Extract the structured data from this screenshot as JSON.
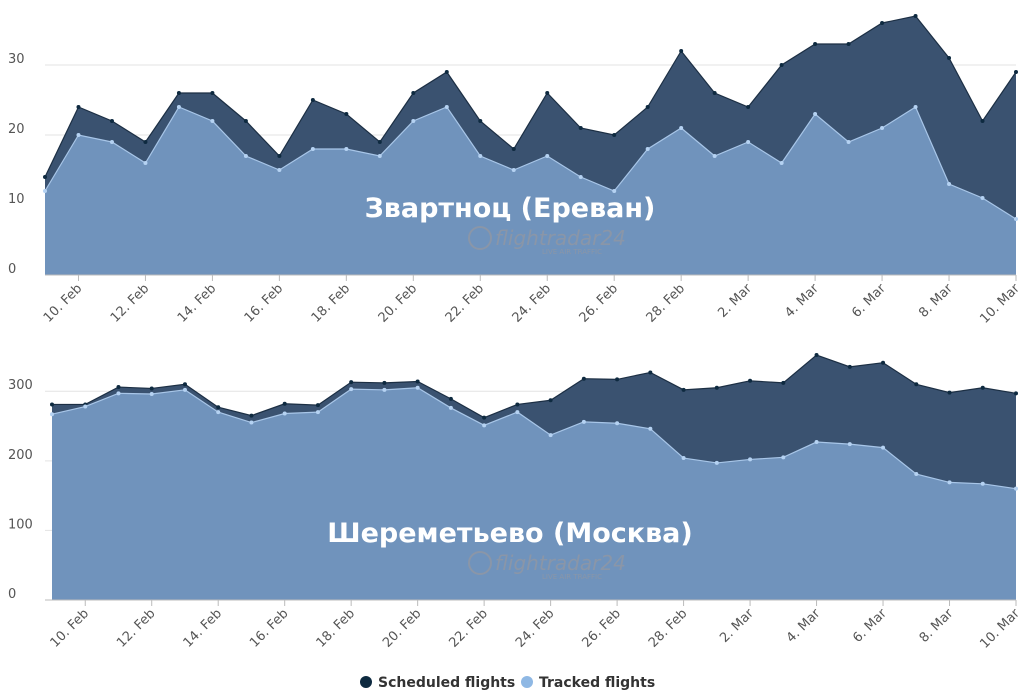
{
  "chart_data": [
    {
      "type": "area",
      "overlay_title": "Звартноц (Ереван)",
      "watermark": "flightradar24",
      "watermark_sub": "LIVE AIR TRAFFIC",
      "categories": [
        null,
        "10. Feb",
        null,
        "12. Feb",
        null,
        "14. Feb",
        null,
        "16. Feb",
        null,
        "18. Feb",
        null,
        "20. Feb",
        null,
        "22. Feb",
        null,
        "24. Feb",
        null,
        "26. Feb",
        null,
        "28. Feb",
        null,
        "2. Mar",
        null,
        "4. Mar",
        null,
        "6. Mar",
        null,
        "8. Mar",
        null,
        "10. Mar"
      ],
      "ylim": [
        0,
        38
      ],
      "yticks": [
        0,
        10,
        20,
        30
      ],
      "grid": true,
      "series": [
        {
          "color": "#3a5270",
          "values": [
            14,
            24,
            22,
            19,
            26,
            26,
            22,
            17,
            25,
            23,
            19,
            26,
            29,
            22,
            18,
            26,
            21,
            20,
            24,
            32,
            26,
            24,
            30,
            33,
            33,
            36,
            37,
            31,
            22,
            29
          ]
        },
        {
          "color": "#7093bc",
          "values": [
            12,
            20,
            19,
            16,
            24,
            22,
            17,
            15,
            18,
            18,
            17,
            22,
            24,
            17,
            15,
            17,
            14,
            12,
            18,
            21,
            17,
            19,
            16,
            23,
            19,
            21,
            24,
            13,
            11,
            8
          ]
        }
      ]
    },
    {
      "type": "area",
      "overlay_title": "Шереметьево (Москва)",
      "watermark": "flightradar24",
      "watermark_sub": "LIVE AIR TRAFFIC",
      "categories": [
        null,
        "10. Feb",
        null,
        "12. Feb",
        null,
        "14. Feb",
        null,
        "16. Feb",
        null,
        "18. Feb",
        null,
        "20. Feb",
        null,
        "22. Feb",
        null,
        "24. Feb",
        null,
        "26. Feb",
        null,
        "28. Feb",
        null,
        "2. Mar",
        null,
        "4. Mar",
        null,
        "6. Mar",
        null,
        "8. Mar",
        null,
        "10. Mar"
      ],
      "ylim": [
        0,
        365
      ],
      "yticks": [
        0,
        100,
        200,
        300
      ],
      "grid": true,
      "series": [
        {
          "color": "#3a5270",
          "values": [
            281,
            281,
            306,
            304,
            310,
            277,
            265,
            282,
            280,
            313,
            312,
            314,
            289,
            262,
            281,
            287,
            318,
            317,
            327,
            302,
            305,
            315,
            312,
            352,
            335,
            341,
            310,
            298,
            305,
            297
          ]
        },
        {
          "color": "#7093bc",
          "values": [
            267,
            278,
            297,
            296,
            302,
            270,
            255,
            268,
            270,
            303,
            302,
            305,
            276,
            251,
            270,
            237,
            256,
            254,
            246,
            204,
            197,
            202,
            205,
            227,
            224,
            219,
            181,
            169,
            167,
            160
          ]
        }
      ]
    }
  ],
  "legend": [
    {
      "name": "Scheduled flights",
      "color": "#0e2a40"
    },
    {
      "name": "Tracked flights",
      "color": "#8fb8e4"
    }
  ]
}
